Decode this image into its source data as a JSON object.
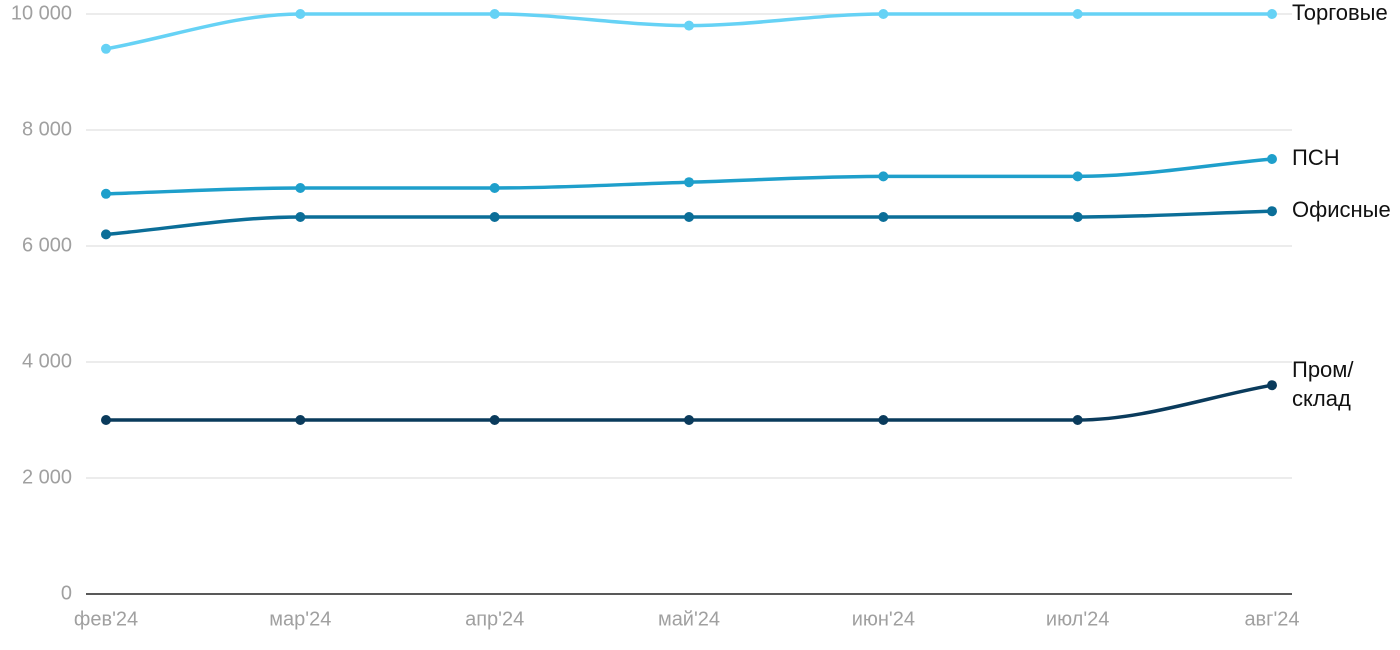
{
  "chart_data": {
    "type": "line",
    "categories": [
      "фев'24",
      "мар'24",
      "апр'24",
      "май'24",
      "июн'24",
      "июл'24",
      "авг'24"
    ],
    "series": [
      {
        "name": "Торговые",
        "color": "#66d2f5",
        "values": [
          9400,
          10000,
          10000,
          9800,
          10000,
          10000,
          10000
        ]
      },
      {
        "name": "ПСН",
        "color": "#1e9fcb",
        "values": [
          6900,
          7000,
          7000,
          7100,
          7200,
          7200,
          7500
        ]
      },
      {
        "name": "Офисные",
        "color": "#0b6e98",
        "values": [
          6200,
          6500,
          6500,
          6500,
          6500,
          6500,
          6600
        ]
      },
      {
        "name": "Пром/ склад",
        "color": "#0a3b5c",
        "values": [
          3000,
          3000,
          3000,
          3000,
          3000,
          3000,
          3600
        ]
      }
    ],
    "ylim": [
      0,
      10000
    ],
    "yticks": [
      0,
      {
        "value": 2000,
        "label": "2 000"
      },
      {
        "value": 4000,
        "label": "4 000"
      },
      {
        "value": 6000,
        "label": "6 000"
      },
      {
        "value": 8000,
        "label": "8 000"
      },
      {
        "value": 10000,
        "label": "10 000"
      }
    ],
    "grid": true
  }
}
